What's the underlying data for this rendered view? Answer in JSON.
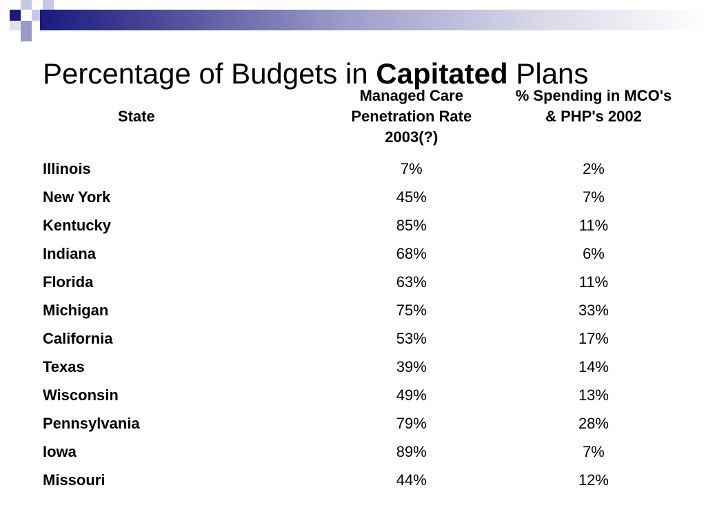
{
  "slide": {
    "title_normal_1": "Percentage of Budgets in ",
    "title_bold": "Capitated",
    "title_normal_2": " Plans"
  },
  "table": {
    "headers": {
      "state": "State",
      "managed_care": [
        "Managed Care",
        "Penetration Rate",
        "2003(?)"
      ],
      "spending": [
        "% Spending in MCO's",
        "& PHP's 2002"
      ]
    },
    "rows": [
      {
        "state": "Illinois",
        "managed_care": "7%",
        "spending": "2%"
      },
      {
        "state": "New York",
        "managed_care": "45%",
        "spending": "7%"
      },
      {
        "state": "Kentucky",
        "managed_care": "85%",
        "spending": "11%"
      },
      {
        "state": "Indiana",
        "managed_care": "68%",
        "spending": "6%"
      },
      {
        "state": "Florida",
        "managed_care": "63%",
        "spending": "11%"
      },
      {
        "state": "Michigan",
        "managed_care": "75%",
        "spending": "33%"
      },
      {
        "state": "California",
        "managed_care": "53%",
        "spending": "17%"
      },
      {
        "state": "Texas",
        "managed_care": "39%",
        "spending": "14%"
      },
      {
        "state": "Wisconsin",
        "managed_care": "49%",
        "spending": "13%"
      },
      {
        "state": "Pennsylvania",
        "managed_care": "79%",
        "spending": "28%"
      },
      {
        "state": "Iowa",
        "managed_care": "89%",
        "spending": "7%"
      },
      {
        "state": "Missouri",
        "managed_care": "44%",
        "spending": "12%"
      }
    ]
  },
  "colors": {
    "accent_dark": "#1a1a80",
    "accent_light": "#9a9ac8"
  }
}
